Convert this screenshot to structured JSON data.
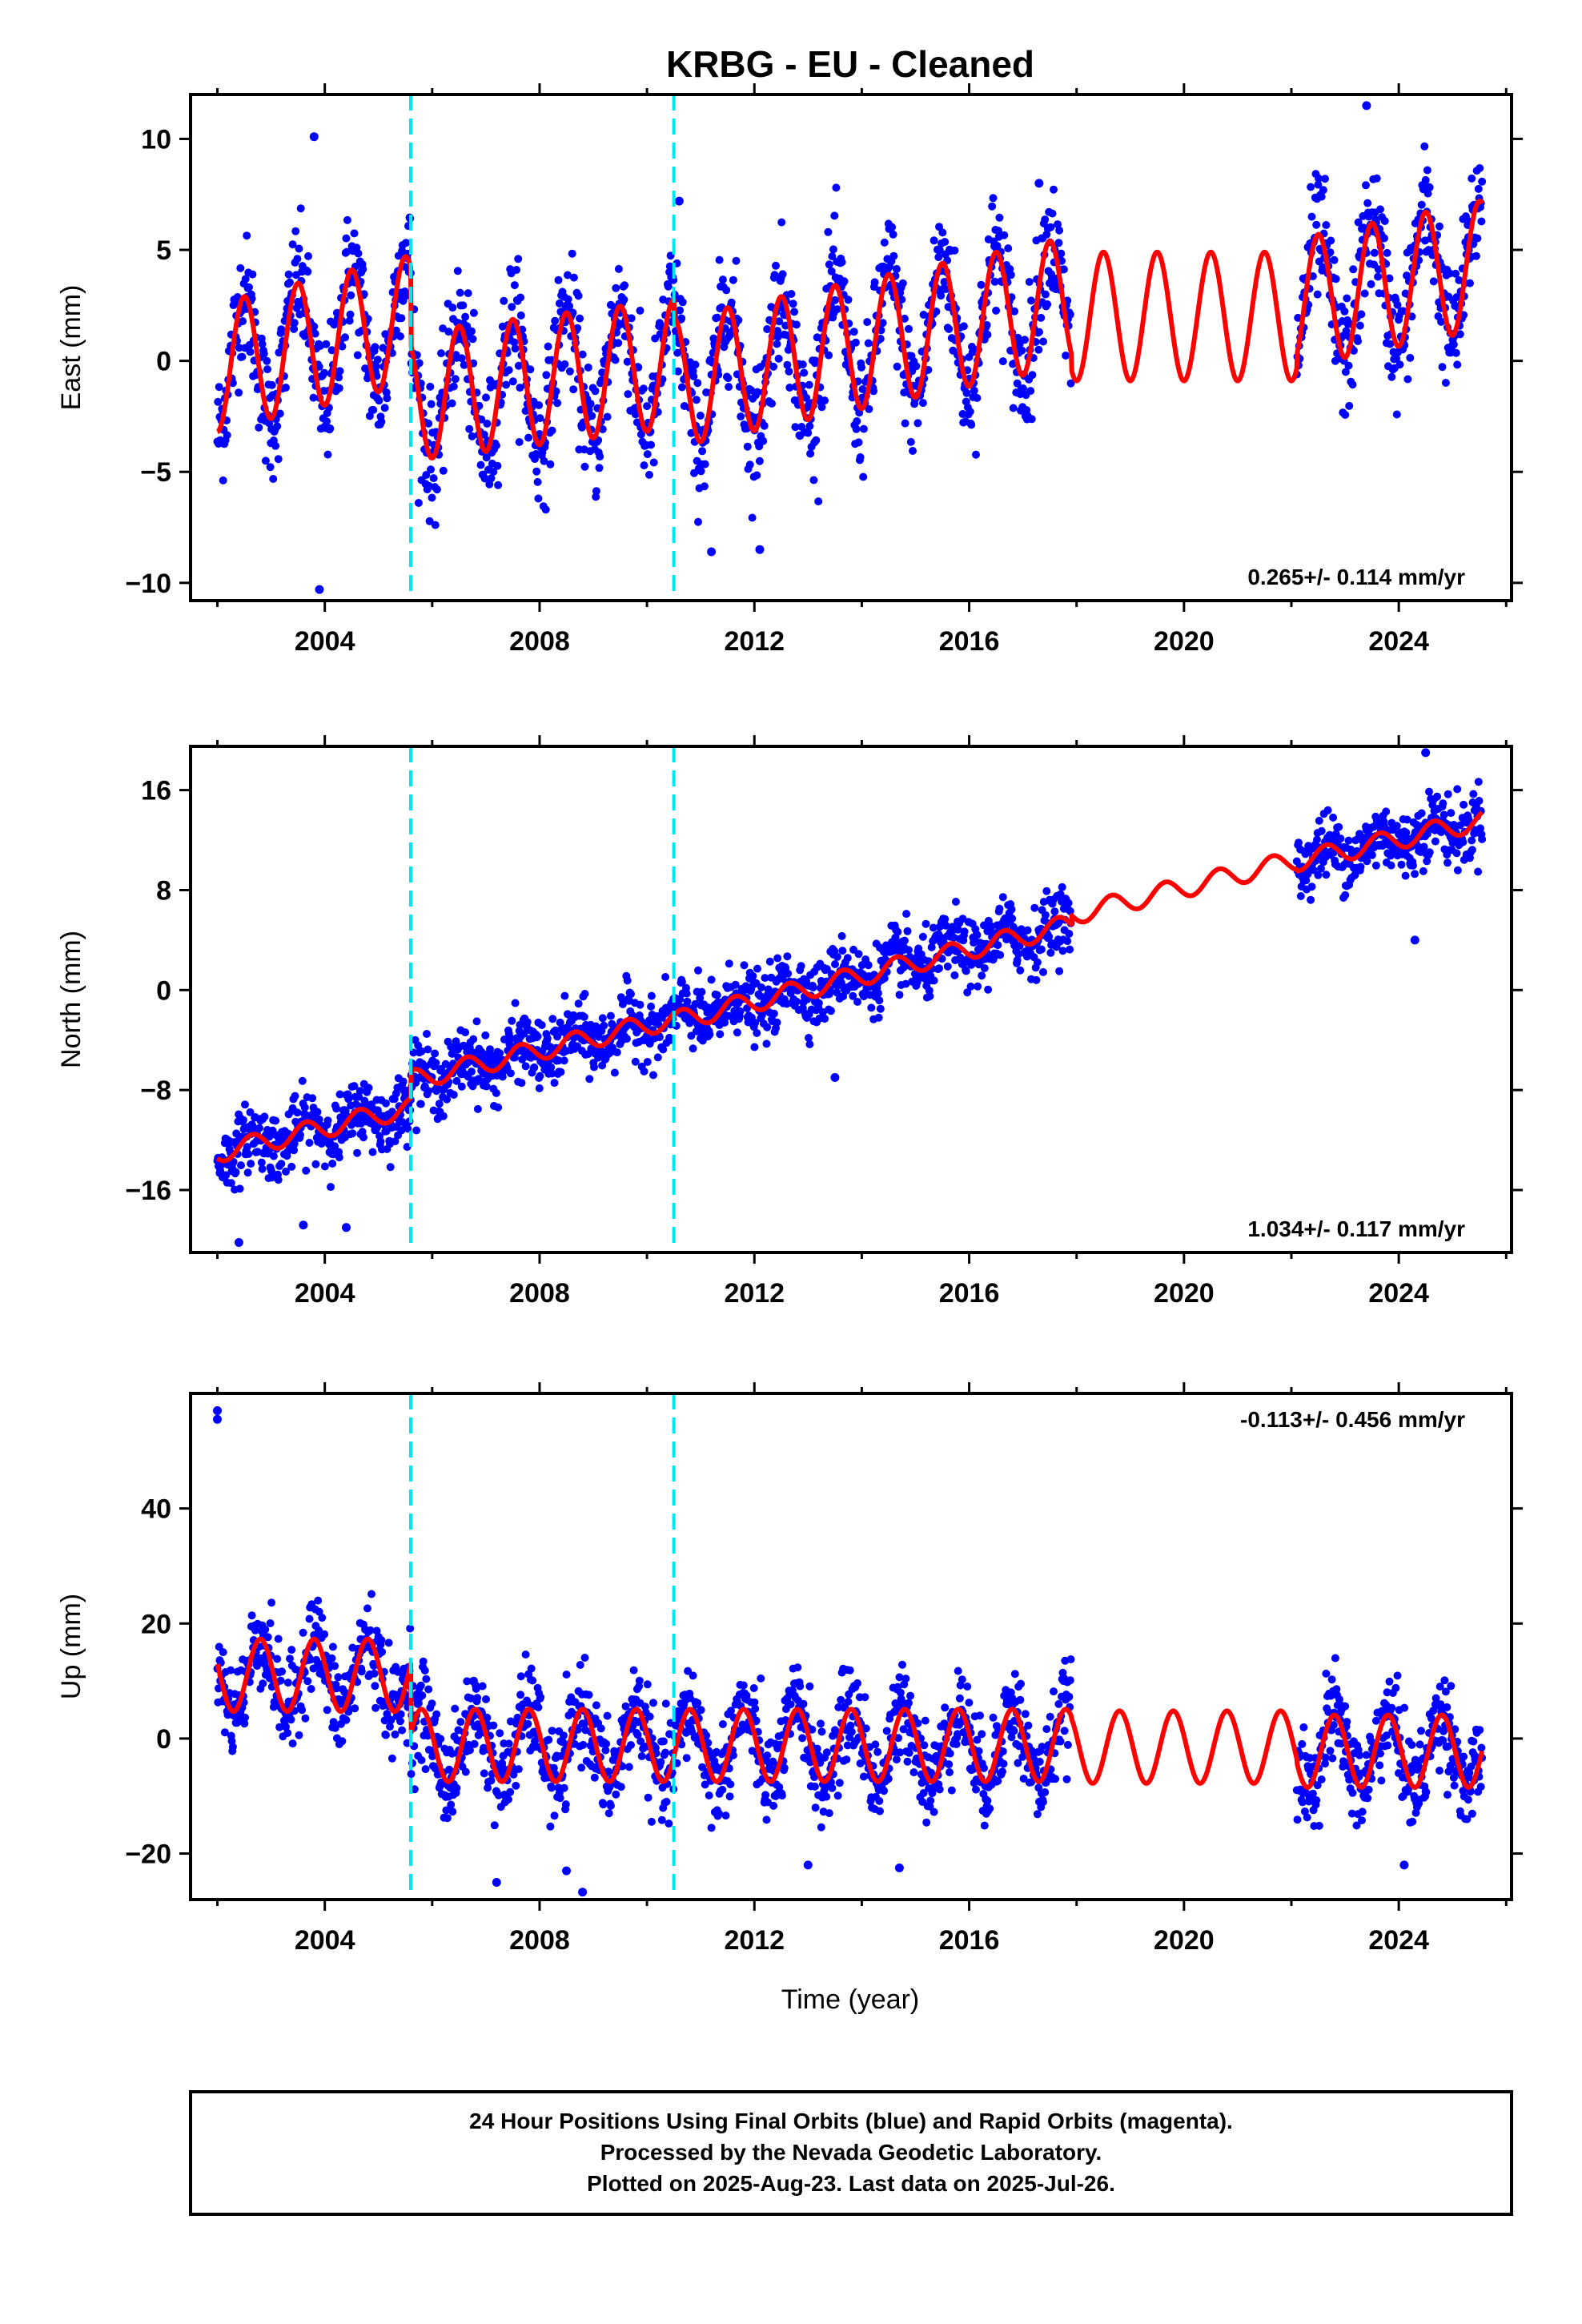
{
  "title": "KRBG  - EU - Cleaned",
  "xlabel": "Time (year)",
  "footer": {
    "line1": "24 Hour Positions Using Final Orbits (blue) and Rapid Orbits (magenta).",
    "line2": "Processed by the Nevada Geodetic Laboratory.",
    "line3": "Plotted on 2025-Aug-23. Last data on 2025-Jul-26."
  },
  "colors": {
    "data": "#0000ff",
    "model": "#ff0000",
    "offset": "#00e5ee",
    "axis": "#000000"
  },
  "chart_data": [
    {
      "type": "scatter",
      "ylabel": "East (mm)",
      "rate": "0.265+/- 0.114 mm/yr",
      "rate_position": "bottom-right",
      "xlim": [
        2001.5,
        2026.1
      ],
      "ylim": [
        -10.8,
        12.0
      ],
      "xticks": [
        2004,
        2008,
        2012,
        2016,
        2020,
        2024
      ],
      "yticks": [
        -10,
        -5,
        0,
        5,
        10
      ],
      "offset_lines": [
        2005.6,
        2010.5
      ],
      "data_gap": [
        2017.9,
        2022.1
      ],
      "model": {
        "segments": [
          [
            2002.0,
            2005.6,
            -0.3,
            0.6
          ],
          [
            2005.6,
            2010.5,
            -1.6,
            0.3
          ],
          [
            2010.5,
            2017.9,
            -1.0,
            0.5
          ],
          [
            2017.9,
            2022.1,
            2.0,
            0.0
          ],
          [
            2022.1,
            2025.55,
            2.6,
            0.5
          ]
        ],
        "amplitude": 2.9,
        "phase_year": 2002.25
      },
      "noise_sd": 1.4,
      "point_count": 2200,
      "outliers": [
        [
          2003.8,
          10.1
        ],
        [
          2010.6,
          7.2
        ],
        [
          2017.3,
          8.0
        ],
        [
          2023.4,
          11.5
        ],
        [
          2011.2,
          -8.6
        ],
        [
          2012.1,
          -8.5
        ],
        [
          2003.9,
          -10.3
        ]
      ]
    },
    {
      "type": "scatter",
      "ylabel": "North (mm)",
      "rate": "1.034+/- 0.117 mm/yr",
      "rate_position": "bottom-right",
      "xlim": [
        2001.5,
        2026.1
      ],
      "ylim": [
        -21.0,
        19.5
      ],
      "xticks": [
        2004,
        2008,
        2012,
        2016,
        2020,
        2024
      ],
      "yticks": [
        -16,
        -8,
        0,
        8,
        16
      ],
      "offset_lines": [
        2005.6,
        2010.5
      ],
      "data_gap": [
        2017.9,
        2022.1
      ],
      "model": {
        "segments": [
          [
            2002.0,
            2005.6,
            -13.0,
            1.0
          ],
          [
            2005.6,
            2010.5,
            -7.2,
            1.0
          ],
          [
            2010.5,
            2017.9,
            -2.5,
            1.05
          ],
          [
            2017.9,
            2022.1,
            6.0,
            1.05
          ],
          [
            2022.1,
            2025.55,
            10.3,
            0.95
          ]
        ],
        "amplitude": 0.8,
        "phase_year": 2002.4
      },
      "noise_sd": 1.3,
      "point_count": 2200,
      "outliers": [
        [
          2002.4,
          -20.2
        ],
        [
          2003.6,
          -18.8
        ],
        [
          2013.5,
          -7.0
        ],
        [
          2024.3,
          4.0
        ],
        [
          2024.5,
          19.0
        ],
        [
          2004.4,
          -19.0
        ]
      ]
    },
    {
      "type": "scatter",
      "ylabel": "Up (mm)",
      "rate": "-0.113+/- 0.456 mm/yr",
      "rate_position": "top-right",
      "xlim": [
        2001.5,
        2026.1
      ],
      "ylim": [
        -28.0,
        60.0
      ],
      "xticks": [
        2004,
        2008,
        2012,
        2016,
        2020,
        2024
      ],
      "yticks": [
        -20,
        0,
        20,
        40
      ],
      "offset_lines": [
        2005.6,
        2010.5
      ],
      "data_gap": [
        2017.9,
        2022.1
      ],
      "model": {
        "segments": [
          [
            2002.0,
            2005.6,
            11.0,
            0.0
          ],
          [
            2005.6,
            2010.5,
            -1.2,
            0.0
          ],
          [
            2010.5,
            2017.9,
            -1.2,
            0.0
          ],
          [
            2017.9,
            2022.1,
            -1.5,
            0.0
          ],
          [
            2022.1,
            2025.55,
            -2.2,
            0.0
          ]
        ],
        "amplitude": 6.3,
        "phase_year": 2002.55
      },
      "noise_sd": 4.0,
      "point_count": 2200,
      "outliers": [
        [
          2002.0,
          57.0
        ],
        [
          2002.0,
          55.5
        ],
        [
          2007.2,
          -25.0
        ],
        [
          2008.8,
          -26.7
        ],
        [
          2008.5,
          -23.0
        ],
        [
          2013.0,
          -22.0
        ],
        [
          2014.7,
          -22.5
        ],
        [
          2024.1,
          -22.0
        ]
      ]
    }
  ]
}
